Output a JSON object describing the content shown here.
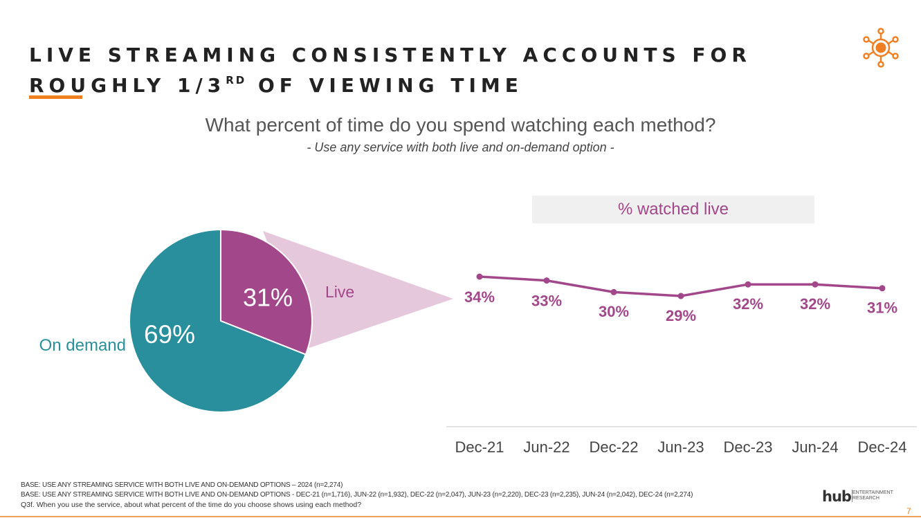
{
  "slide": {
    "title_line1": "LIVE STREAMING CONSISTENTLY ACCOUNTS FOR",
    "title_line2_a": "ROUGHLY 1/3",
    "title_line2_sup": "RD",
    "title_line2_b": " OF VIEWING TIME",
    "question": "What percent of time do you spend watching each method?",
    "subquestion": "- Use any service with both live and on-demand option -",
    "panel_label": "% watched live",
    "page_number": "7",
    "brand_name": "hub",
    "brand_sub_line1": "ENTERTAINMENT",
    "brand_sub_line2": "RESEARCH",
    "footer": [
      "BASE: USE ANY STREAMING SERVICE WITH BOTH LIVE AND ON-DEMAND OPTIONS – 2024 (n=2,274)",
      "BASE: USE ANY STREAMING SERVICE WITH BOTH LIVE AND ON-DEMAND OPTIONS - DEC-21 (n=1,716), JUN-22 (n=1,932), DEC-22 (n=2,047), JUN-23 (n=2,220), DEC-23 (n=2,235), JUN-24 (n=2,042), DEC-24 (n=2,274)",
      "Q3f. When you use the service, about what percent of the time do you choose shows using each method?"
    ]
  },
  "colors": {
    "live": "#a1478a",
    "on_demand": "#2a8f9c",
    "callout": "#e6c8dd",
    "accent": "#f07f22"
  },
  "chart_data": [
    {
      "type": "pie",
      "labels": [
        "Live",
        "On demand"
      ],
      "values": [
        31,
        69
      ],
      "value_labels": [
        "31%",
        "69%"
      ]
    },
    {
      "type": "line",
      "categories": [
        "Dec-21",
        "Jun-22",
        "Dec-22",
        "Jun-23",
        "Dec-23",
        "Jun-24",
        "Dec-24"
      ],
      "series": [
        {
          "values": [
            34,
            33,
            30,
            29,
            32,
            32,
            31
          ],
          "value_labels": [
            "34%",
            "33%",
            "30%",
            "29%",
            "32%",
            "32%",
            "31%"
          ]
        }
      ]
    }
  ]
}
